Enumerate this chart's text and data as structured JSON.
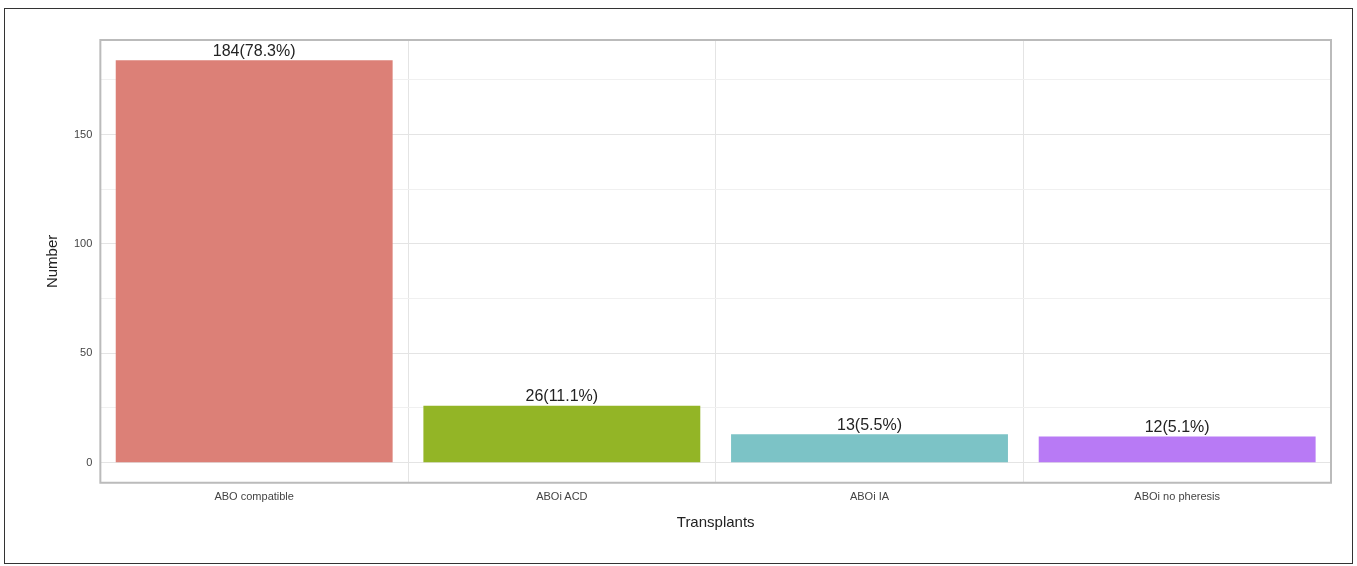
{
  "chart_data": {
    "type": "bar",
    "xlabel": "Transplants",
    "ylabel": "Number",
    "categories": [
      "ABO compatible",
      "ABOi ACD",
      "ABOi IA",
      "ABOi no pheresis"
    ],
    "values": [
      184,
      26,
      13,
      12
    ],
    "colors": [
      "#dc8077",
      "#93b526",
      "#7cc3c6",
      "#b87af5"
    ],
    "value_labels": [
      "184(78.3%)",
      "26(11.1%)",
      "13(5.5%)",
      "12(5.1%)"
    ],
    "ylim": [
      -9.2,
      193.2
    ],
    "yticks": [
      0,
      {
        "value": 25,
        "label": null
      },
      50,
      {
        "value": 75,
        "label": null
      },
      100,
      {
        "value": 125,
        "label": null
      },
      150,
      {
        "value": 175,
        "label": null
      }
    ],
    "grid": true,
    "legend": false
  }
}
